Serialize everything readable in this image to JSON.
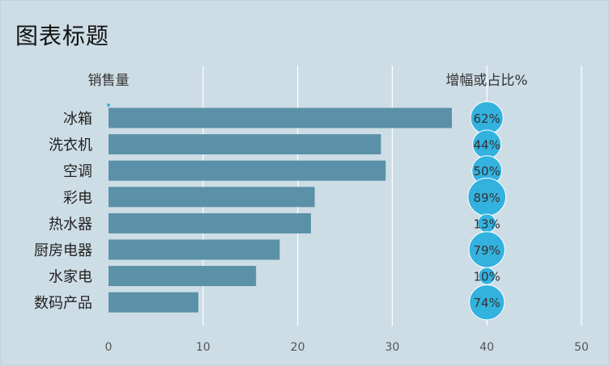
{
  "chart_data": {
    "type": "bar",
    "title": "图表标题",
    "series_header_left": "销售量",
    "series_header_right": "增幅或占比%",
    "categories": [
      "冰箱",
      "洗衣机",
      "空调",
      "彩电",
      "热水器",
      "厨房电器",
      "水家电",
      "数码产品"
    ],
    "series": [
      {
        "name": "销售量",
        "values": [
          36.3,
          28.8,
          29.3,
          21.8,
          21.4,
          18.1,
          15.6,
          9.5
        ]
      }
    ],
    "bubble_labels": [
      "62%",
      "44%",
      "50%",
      "89%",
      "13%",
      "79%",
      "10%",
      "74%"
    ],
    "bubble_values": [
      62,
      44,
      50,
      89,
      13,
      79,
      10,
      74
    ],
    "bubble_x": 40,
    "xlim": [
      0,
      50
    ],
    "xticks": [
      0,
      10,
      20,
      30,
      40,
      50
    ],
    "grid": true,
    "colors": {
      "bar": "#5b91a8",
      "bubble": "#33b2e0",
      "background": "#cddde5",
      "grid": "#ffffff"
    }
  }
}
